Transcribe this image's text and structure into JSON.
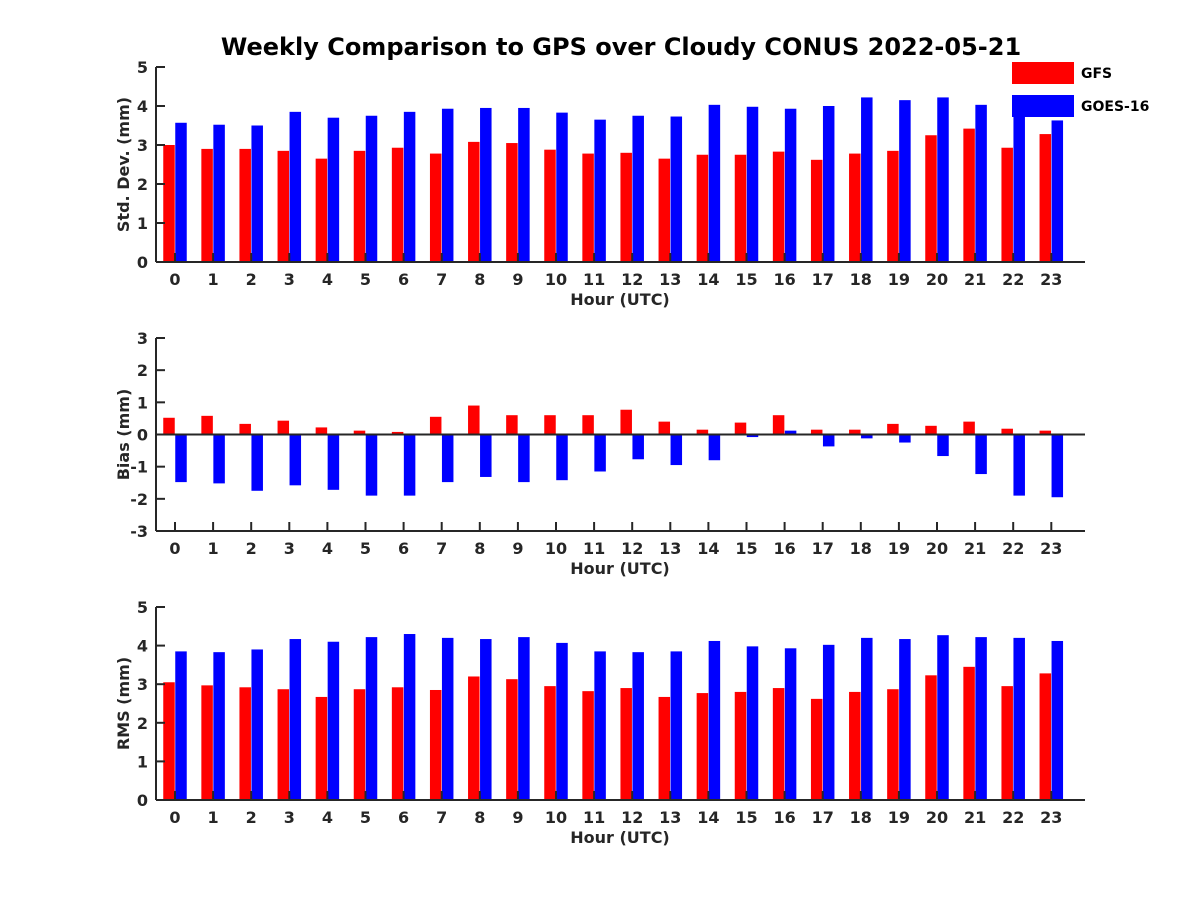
{
  "chart_data": [
    {
      "type": "bar",
      "title": "Weekly Comparison to GPS over Cloudy CONUS 2022-05-21",
      "xlabel": "Hour (UTC)",
      "ylabel": "Std. Dev. (mm)",
      "ylim": [
        0,
        5
      ],
      "yticks": [
        0,
        1,
        2,
        3,
        4,
        5
      ],
      "categories": [
        "0",
        "1",
        "2",
        "3",
        "4",
        "5",
        "6",
        "7",
        "8",
        "9",
        "10",
        "11",
        "12",
        "13",
        "14",
        "15",
        "16",
        "17",
        "18",
        "19",
        "20",
        "21",
        "22",
        "23"
      ],
      "series": [
        {
          "name": "GFS",
          "color": "#ff0000",
          "values": [
            3.0,
            2.9,
            2.9,
            2.85,
            2.65,
            2.85,
            2.93,
            2.78,
            3.08,
            3.05,
            2.88,
            2.78,
            2.8,
            2.65,
            2.75,
            2.75,
            2.83,
            2.62,
            2.78,
            2.85,
            3.25,
            3.42,
            2.93,
            3.28
          ]
        },
        {
          "name": "GOES-16",
          "color": "#0000ff",
          "values": [
            3.57,
            3.52,
            3.5,
            3.85,
            3.7,
            3.75,
            3.85,
            3.93,
            3.95,
            3.95,
            3.83,
            3.65,
            3.75,
            3.73,
            4.03,
            3.98,
            3.93,
            4.0,
            4.22,
            4.15,
            4.22,
            4.03,
            3.73,
            3.63
          ]
        }
      ],
      "legend_position": "top-right",
      "grid": false
    },
    {
      "type": "bar",
      "xlabel": "Hour (UTC)",
      "ylabel": "Bias (mm)",
      "ylim": [
        -3,
        3
      ],
      "yticks": [
        -3,
        -2,
        -1,
        0,
        1,
        2,
        3
      ],
      "categories": [
        "0",
        "1",
        "2",
        "3",
        "4",
        "5",
        "6",
        "7",
        "8",
        "9",
        "10",
        "11",
        "12",
        "13",
        "14",
        "15",
        "16",
        "17",
        "18",
        "19",
        "20",
        "21",
        "22",
        "23"
      ],
      "series": [
        {
          "name": "GFS",
          "color": "#ff0000",
          "values": [
            0.52,
            0.58,
            0.33,
            0.43,
            0.22,
            0.12,
            0.08,
            0.55,
            0.9,
            0.6,
            0.6,
            0.6,
            0.77,
            0.4,
            0.15,
            0.37,
            0.6,
            0.15,
            0.15,
            0.33,
            0.27,
            0.4,
            0.18,
            0.12
          ]
        },
        {
          "name": "GOES-16",
          "color": "#0000ff",
          "values": [
            -1.48,
            -1.52,
            -1.75,
            -1.58,
            -1.72,
            -1.9,
            -1.9,
            -1.48,
            -1.32,
            -1.48,
            -1.42,
            -1.15,
            -0.77,
            -0.95,
            -0.8,
            -0.08,
            0.12,
            -0.37,
            -0.12,
            -0.25,
            -0.67,
            -1.23,
            -1.9,
            -1.95
          ]
        }
      ],
      "grid": false
    },
    {
      "type": "bar",
      "xlabel": "Hour (UTC)",
      "ylabel": "RMS (mm)",
      "ylim": [
        0,
        5
      ],
      "yticks": [
        0,
        1,
        2,
        3,
        4,
        5
      ],
      "categories": [
        "0",
        "1",
        "2",
        "3",
        "4",
        "5",
        "6",
        "7",
        "8",
        "9",
        "10",
        "11",
        "12",
        "13",
        "14",
        "15",
        "16",
        "17",
        "18",
        "19",
        "20",
        "21",
        "22",
        "23"
      ],
      "series": [
        {
          "name": "GFS",
          "color": "#ff0000",
          "values": [
            3.05,
            2.97,
            2.92,
            2.87,
            2.67,
            2.87,
            2.92,
            2.85,
            3.2,
            3.13,
            2.95,
            2.82,
            2.9,
            2.67,
            2.77,
            2.8,
            2.9,
            2.62,
            2.8,
            2.87,
            3.23,
            3.45,
            2.95,
            3.28
          ]
        },
        {
          "name": "GOES-16",
          "color": "#0000ff",
          "values": [
            3.85,
            3.83,
            3.9,
            4.17,
            4.1,
            4.22,
            4.3,
            4.2,
            4.17,
            4.22,
            4.07,
            3.85,
            3.83,
            3.85,
            4.12,
            3.98,
            3.93,
            4.02,
            4.2,
            4.17,
            4.27,
            4.22,
            4.2,
            4.12
          ]
        }
      ],
      "grid": false
    }
  ]
}
